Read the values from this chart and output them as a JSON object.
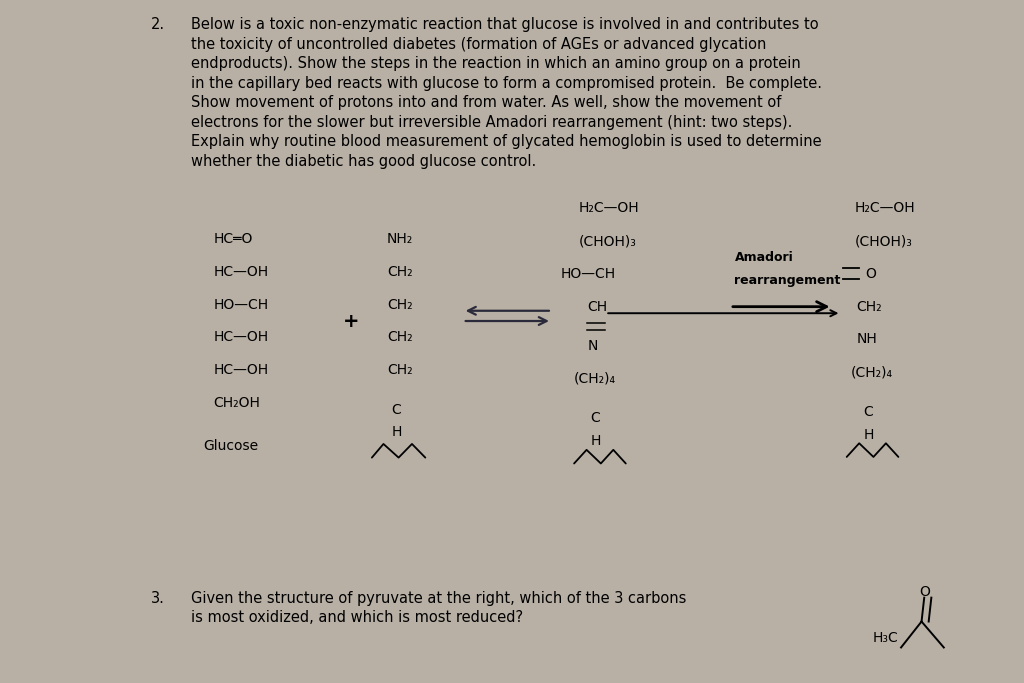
{
  "bg_color": "#b8b0a5",
  "paper_color": "#f2ede6",
  "title_number": "2.",
  "title_text": "Below is a toxic non-enzymatic reaction that glucose is involved in and contributes to\nthe toxicity of uncontrolled diabetes (formation of AGEs or advanced glycation\nendproducts). Show the steps in the reaction in which an amino group on a protein\nin the capillary bed reacts with glucose to form a compromised protein.  Be complete.\nShow movement of protons into and from water. As well, show the movement of\nelectrons for the slower but irreversible Amadori rearrangement (hint: two steps).\nExplain why routine blood measurement of glycated hemoglobin is used to determine\nwhether the diabetic has good glucose control.",
  "q3_number": "3.",
  "q3_text": "Given the structure of pyruvate at the right, which of the 3 carbons\nis most oxidized, and which is most reduced?",
  "font_size_body": 10.5,
  "font_size_chem": 10.0,
  "font_size_chem_small": 9.0
}
